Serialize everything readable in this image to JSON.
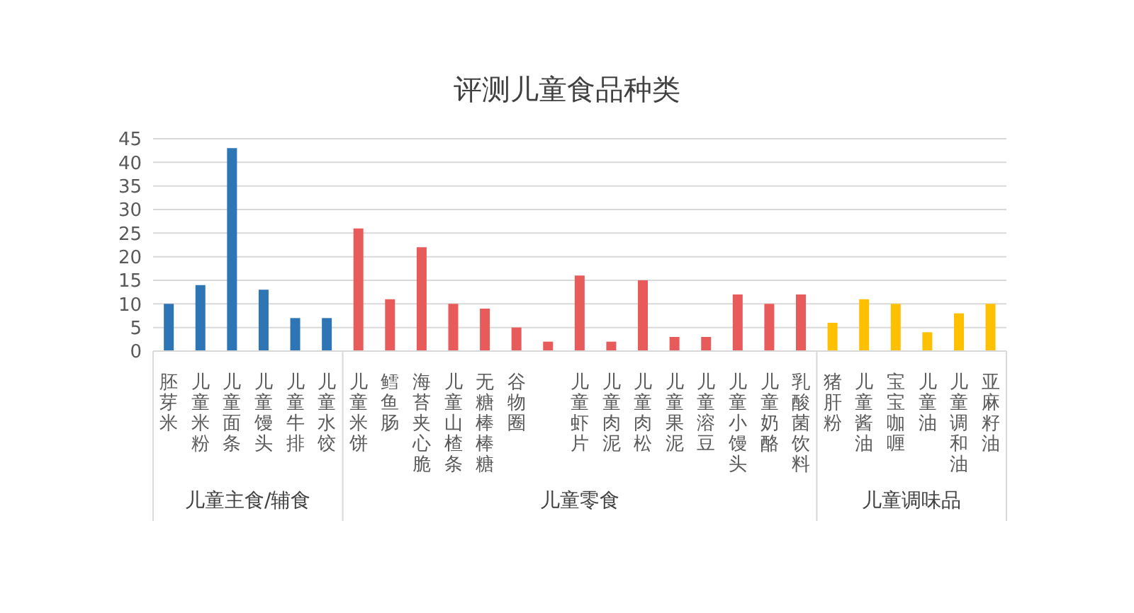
{
  "chart_data": {
    "type": "bar",
    "title": "评测儿童食品种类",
    "categories": [
      "胚芽米",
      "儿童米粉",
      "儿童面条",
      "儿童馒头",
      "儿童牛排",
      "儿童水饺",
      "儿童米饼",
      "鳕鱼肠",
      "海苔夹心脆",
      "儿童山楂条",
      "无糖棒棒糖",
      "谷物圈",
      null,
      "儿童虾片",
      "儿童肉泥",
      "儿童肉松",
      "儿童果泥",
      "儿童溶豆",
      "儿童小馒头",
      "儿童奶酪",
      "乳酸菌饮料",
      "猪肝粉",
      "儿童酱油",
      "宝宝咖喱",
      "儿童油",
      "儿童调和油",
      "亚麻籽油"
    ],
    "series": [
      {
        "color": "#2e75b6",
        "values": [
          10,
          14,
          43,
          13,
          7,
          7,
          null,
          null,
          null,
          null,
          null,
          null,
          null,
          null,
          null,
          null,
          null,
          null,
          null,
          null,
          null,
          null,
          null,
          null,
          null,
          null,
          null
        ]
      },
      {
        "color": "#e85b5b",
        "values": [
          null,
          null,
          null,
          null,
          null,
          null,
          26,
          11,
          22,
          10,
          9,
          5,
          2,
          16,
          2,
          15,
          3,
          3,
          12,
          10,
          12,
          null,
          null,
          null,
          null,
          null,
          null
        ]
      },
      {
        "color": "#ffc000",
        "values": [
          null,
          null,
          null,
          null,
          null,
          null,
          null,
          null,
          null,
          null,
          null,
          null,
          null,
          null,
          null,
          null,
          null,
          null,
          null,
          null,
          null,
          6,
          11,
          10,
          4,
          8,
          10
        ]
      }
    ],
    "annotations": [
      "儿童主食/辅食",
      "儿童零食",
      "儿童调味品"
    ],
    "ylim": [
      0,
      45
    ],
    "yticks": [
      0,
      5,
      10,
      15,
      20,
      25,
      30,
      35,
      40,
      45
    ],
    "grid": "y"
  }
}
